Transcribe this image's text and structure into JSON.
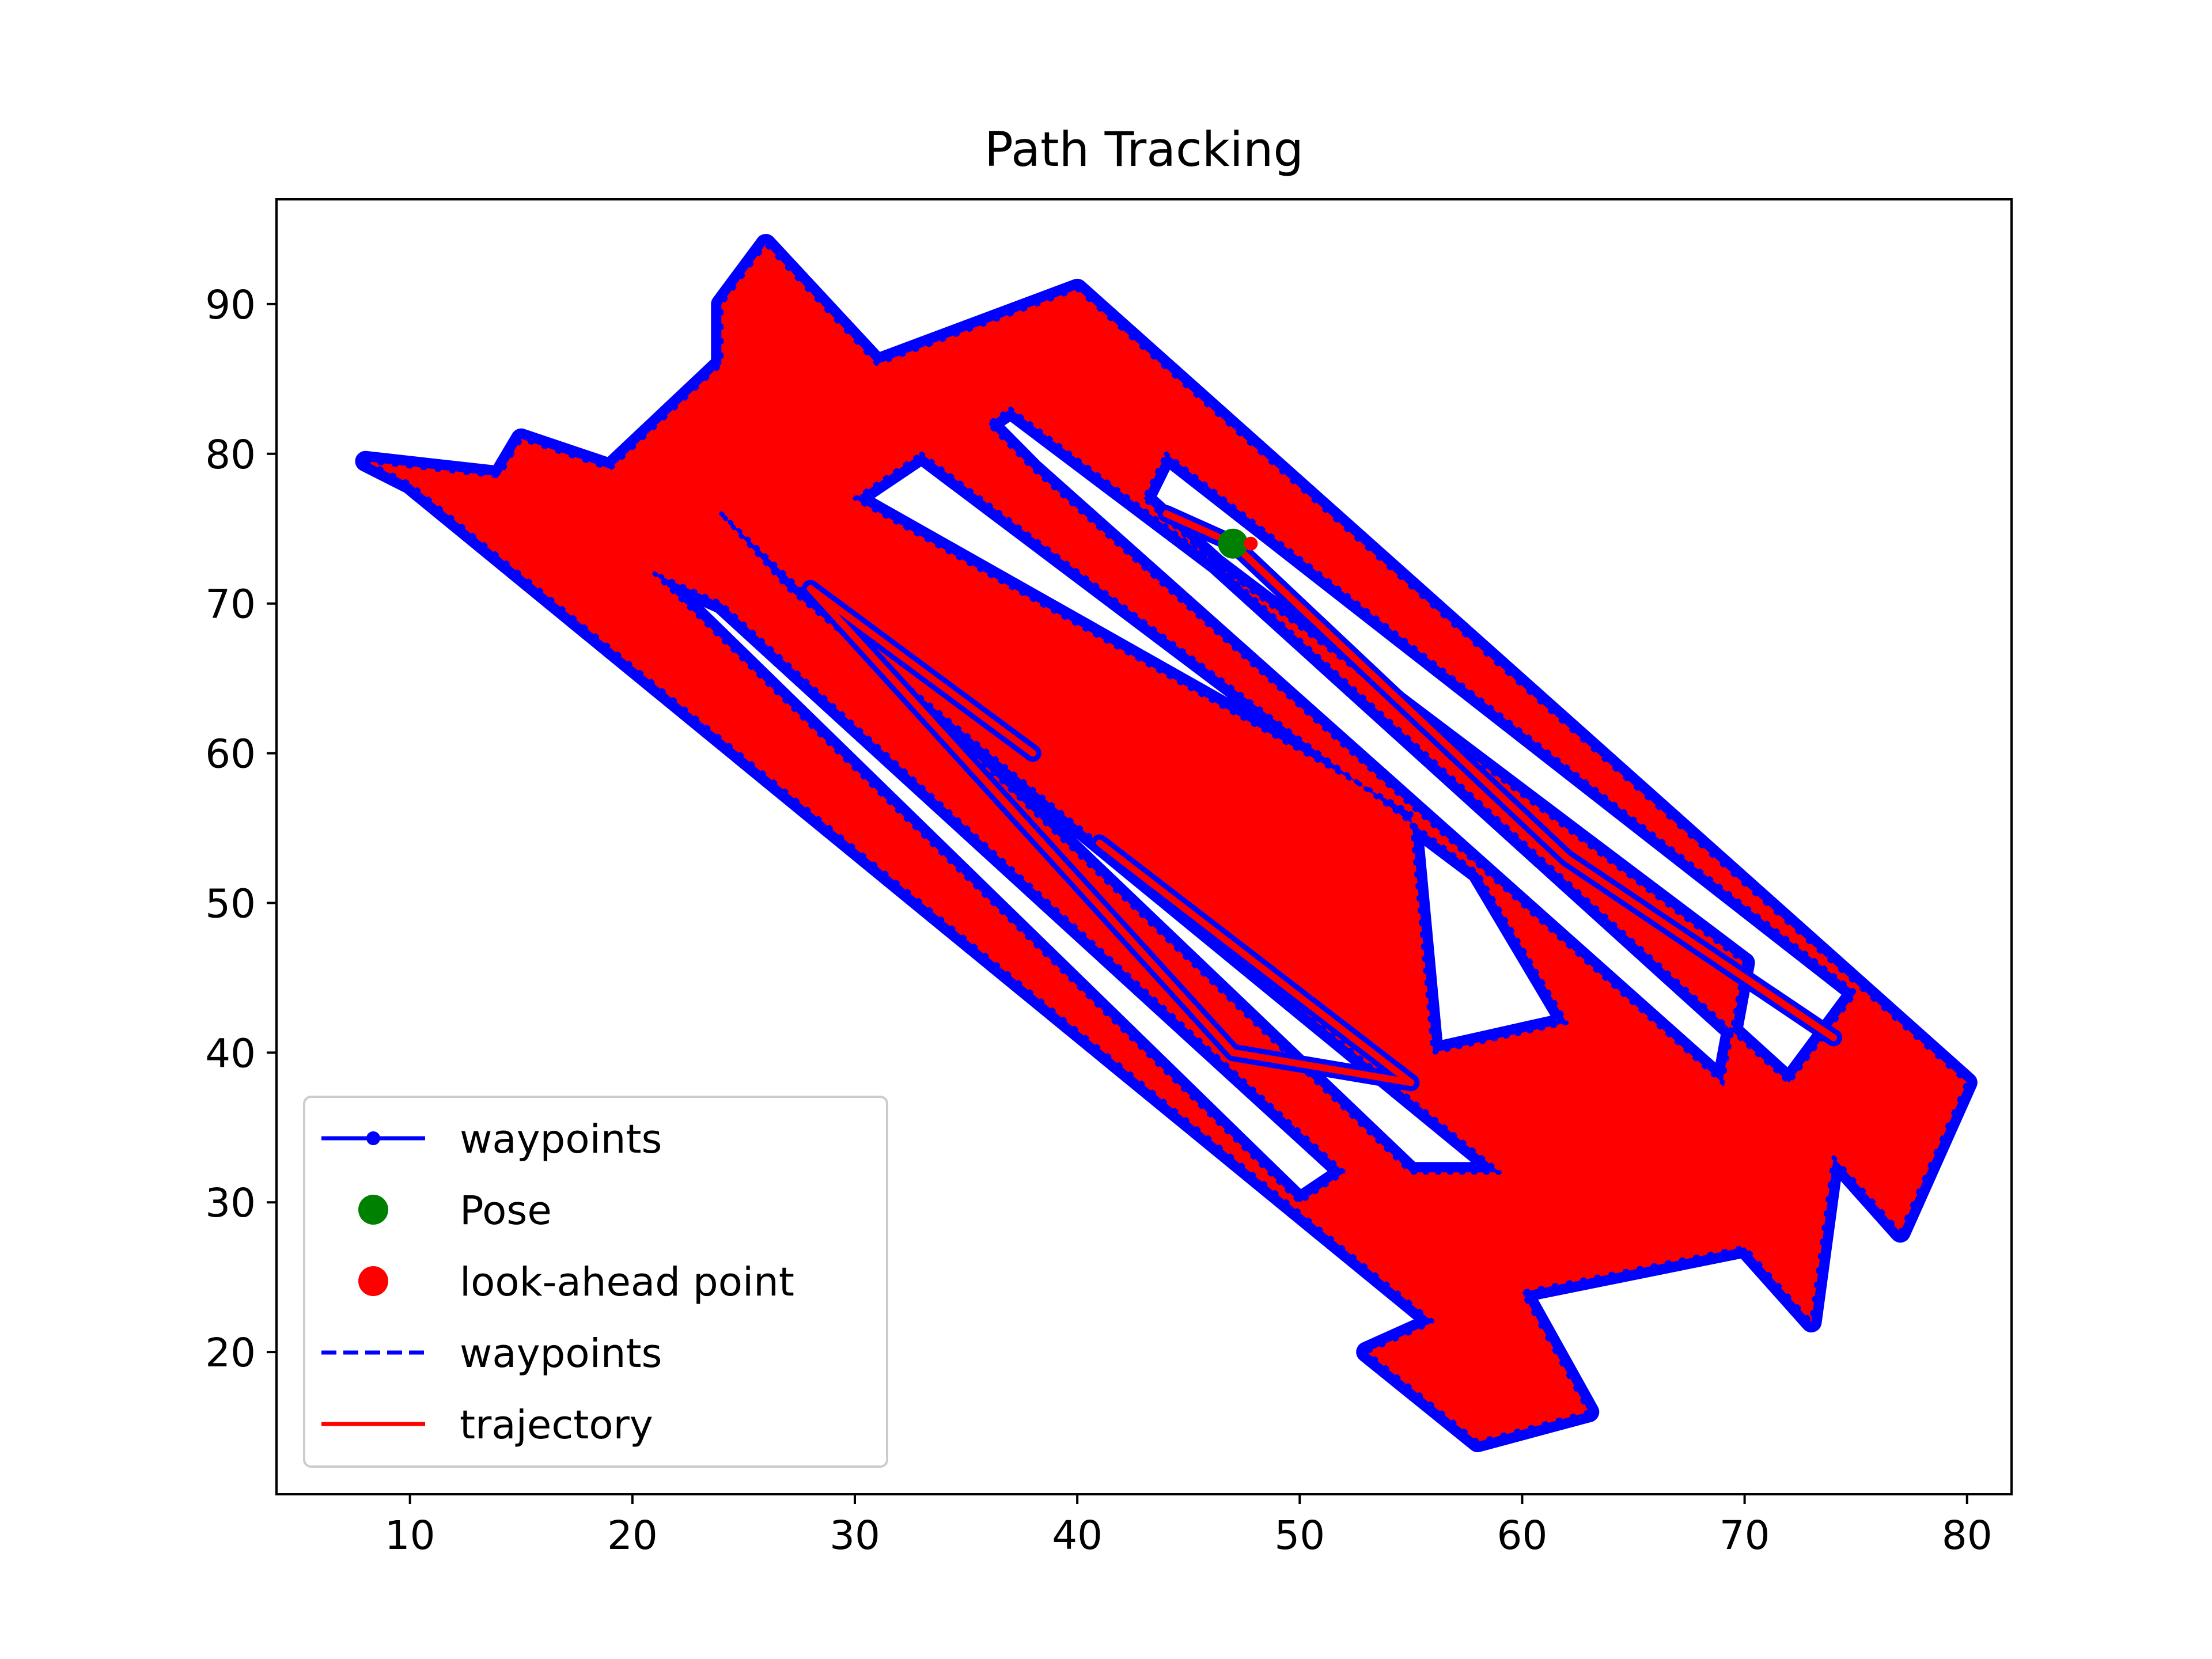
{
  "chart_data": {
    "type": "line",
    "title": "Path Tracking",
    "xlabel": "",
    "ylabel": "",
    "xlim": [
      4,
      82
    ],
    "ylim": [
      10.5,
      97
    ],
    "xticks": [
      10,
      20,
      30,
      40,
      50,
      60,
      70,
      80
    ],
    "yticks": [
      20,
      30,
      40,
      50,
      60,
      70,
      80,
      90
    ],
    "grid": false,
    "legend_position": "lower-left",
    "colors": {
      "waypoints": "#0000ff",
      "pose": "#008000",
      "lookahead": "#ff0000",
      "trajectory": "#ff0000"
    },
    "series": [
      {
        "name": "waypoints",
        "style": "line-dot",
        "outline": [
          [
            8,
            79.5
          ],
          [
            14,
            78.5
          ],
          [
            15,
            81
          ],
          [
            19,
            79
          ],
          [
            24,
            86
          ],
          [
            24,
            90
          ],
          [
            26,
            94
          ],
          [
            31,
            86
          ],
          [
            40,
            91
          ],
          [
            80,
            38
          ],
          [
            77,
            28
          ],
          [
            74,
            33
          ],
          [
            73,
            22
          ],
          [
            70,
            27
          ],
          [
            60,
            24
          ],
          [
            63,
            16
          ],
          [
            58,
            14
          ],
          [
            53,
            20
          ],
          [
            56,
            22
          ],
          [
            10,
            78
          ]
        ],
        "holes": [
          [
            [
              33,
              80
            ],
            [
              58,
              52
            ],
            [
              62,
              42
            ],
            [
              56,
              40
            ],
            [
              55,
              56
            ],
            [
              30,
              77
            ]
          ],
          [
            [
              37,
              83
            ],
            [
              70,
              46
            ],
            [
              69,
              38
            ],
            [
              38,
              79
            ],
            [
              36,
              82
            ]
          ],
          [
            [
              44,
              80
            ],
            [
              75,
              44
            ],
            [
              72,
              38
            ],
            [
              43,
              77
            ]
          ],
          [
            [
              24,
              76
            ],
            [
              55,
              32
            ],
            [
              59,
              32
            ],
            [
              27,
              71
            ]
          ],
          [
            [
              21,
              72
            ],
            [
              50,
              30
            ],
            [
              52,
              32
            ],
            [
              24,
              70
            ]
          ]
        ],
        "tracks": [
          [
            [
              41,
              54
            ],
            [
              55,
              38
            ],
            [
              47,
              40
            ],
            [
              28,
              71
            ],
            [
              38,
              60
            ]
          ],
          [
            [
              44,
              76
            ],
            [
              47,
              74
            ],
            [
              52,
              67
            ],
            [
              62,
              53
            ],
            [
              74,
              41
            ]
          ]
        ]
      },
      {
        "name": "Pose",
        "style": "marker",
        "points": [
          [
            47,
            74
          ]
        ]
      },
      {
        "name": "look-ahead point",
        "style": "marker",
        "points": [
          [
            47.8,
            74
          ]
        ]
      },
      {
        "name": "waypoints",
        "style": "dashed",
        "points": []
      },
      {
        "name": "trajectory",
        "style": "line",
        "points": []
      }
    ]
  }
}
